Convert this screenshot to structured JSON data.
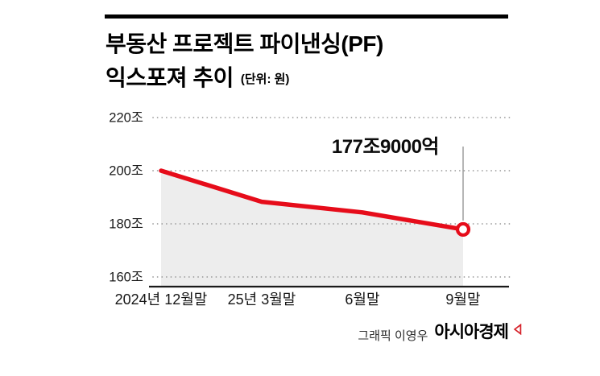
{
  "header": {
    "title_line1": "부동산 프로젝트 파이낸싱(PF)",
    "title_line2": "익스포져 추이",
    "unit_note": "(단위: 원)"
  },
  "credit": {
    "prefix": "그래픽 이영우",
    "brand": "아시아경제",
    "logo_icon": "asiae-flag-mark"
  },
  "colors": {
    "line": "#e60c1a",
    "area": "#ededed",
    "grid": "#9a9a9a",
    "axis": "#1a1a1a",
    "leader": "#8f8f8f",
    "text": "#161616",
    "brand_mark": "#d6222a"
  },
  "chart_data": {
    "type": "line",
    "title": "부동산 프로젝트 파이낸싱(PF) 익스포져 추이",
    "xlabel": "",
    "ylabel": "",
    "unit_note": "(단위: 원)",
    "x": [
      "2024년 12월말",
      "25년 3월말",
      "6월말",
      "9월말"
    ],
    "values": [
      200.0,
      188.3,
      184.3,
      177.9
    ],
    "value_unit": "조",
    "unit": "조",
    "yticks": [
      220,
      200,
      180,
      160
    ],
    "ylim": [
      156,
      224
    ],
    "grid": "dotted-horizontal",
    "legend": "none",
    "area_fill": true,
    "marker_last": "open-circle",
    "annotation": {
      "index": 3,
      "label": "177조9000억"
    }
  }
}
